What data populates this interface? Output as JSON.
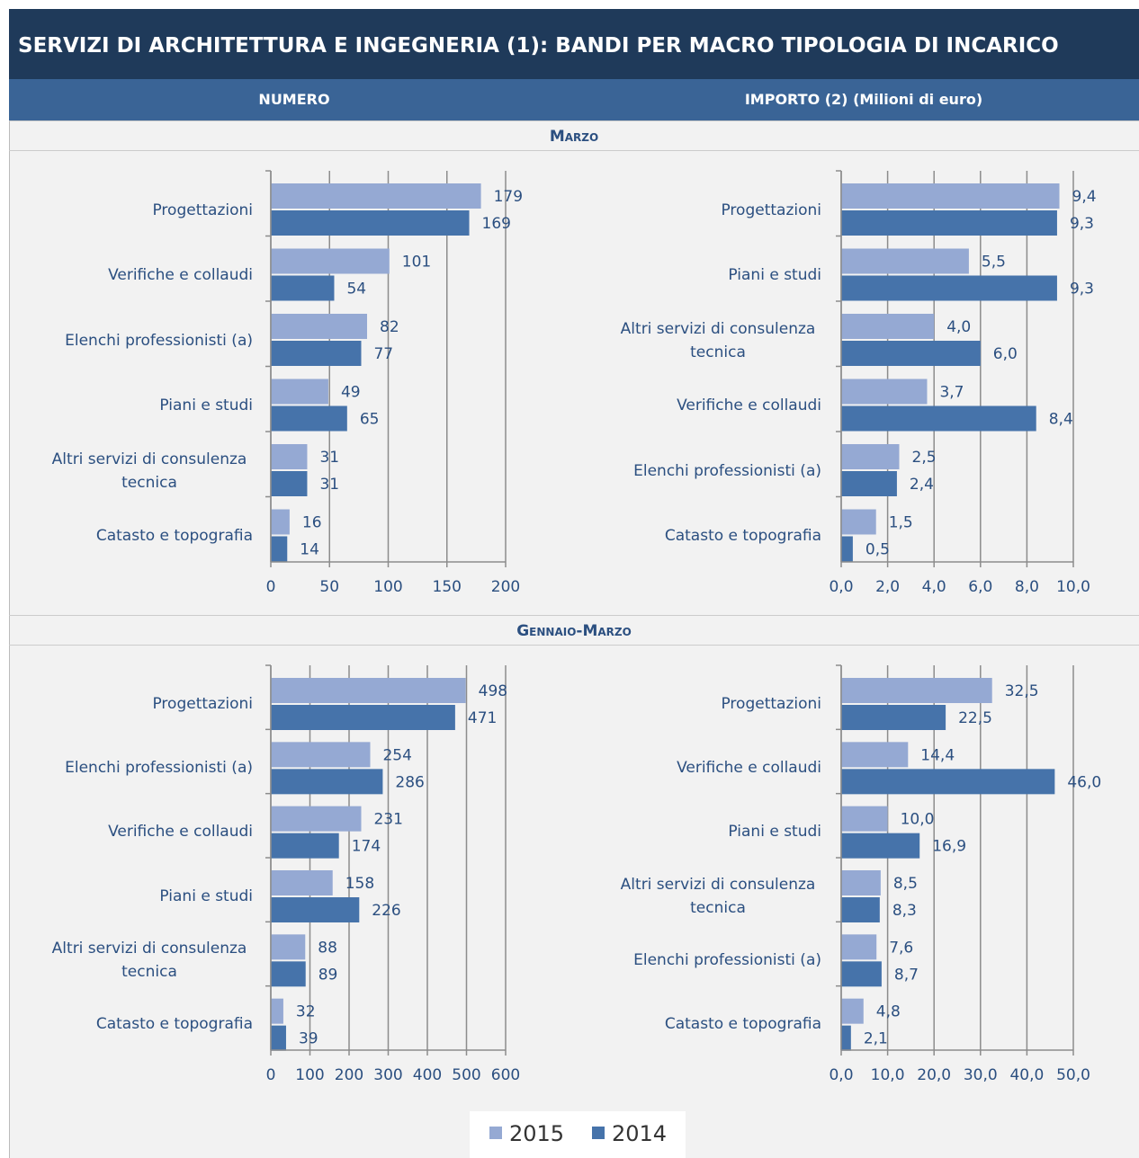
{
  "title": "SERVIZI DI ARCHITETTURA E INGEGNERIA (1): BANDI PER MACRO TIPOLOGIA DI INCARICO",
  "columns": [
    "NUMERO",
    "IMPORTO (2) (Milioni di euro)"
  ],
  "sections": [
    "Marzo",
    "Gennaio-Marzo"
  ],
  "chart_data": [
    {
      "type": "bar",
      "orientation": "horizontal",
      "categories": [
        "Progettazioni",
        "Verifiche e collaudi",
        "Elenchi professionisti (a)",
        "Piani e studi",
        "Altri servizi di consulenza tecnica",
        "Catasto e topografia"
      ],
      "series": [
        {
          "name": "2015",
          "color": "#95a9d3",
          "values": [
            179,
            101,
            82,
            49,
            31,
            16
          ]
        },
        {
          "name": "2014",
          "color": "#4673aa",
          "values": [
            169,
            54,
            77,
            65,
            31,
            14
          ]
        }
      ],
      "xlim": [
        0,
        200
      ],
      "xticks": [
        0,
        50,
        100,
        150,
        200
      ],
      "grid": true
    },
    {
      "type": "bar",
      "orientation": "horizontal",
      "categories": [
        "Progettazioni",
        "Piani e studi",
        "Altri servizi di consulenza tecnica",
        "Verifiche e collaudi",
        "Elenchi professionisti (a)",
        "Catasto e topografia"
      ],
      "series": [
        {
          "name": "2015",
          "color": "#95a9d3",
          "values": [
            9.4,
            5.5,
            4.0,
            3.7,
            2.5,
            1.5
          ],
          "value_labels": [
            "9,4",
            "5,5",
            "4,0",
            "3,7",
            "2,5",
            "1,5"
          ]
        },
        {
          "name": "2014",
          "color": "#4673aa",
          "values": [
            9.3,
            9.3,
            6.0,
            8.4,
            2.4,
            0.5
          ],
          "value_labels": [
            "9,3",
            "9,3",
            "6,0",
            "8,4",
            "2,4",
            "0,5"
          ]
        }
      ],
      "xlim": [
        0,
        10
      ],
      "xticks": [
        {
          "value": 0,
          "label": "0,0"
        },
        {
          "value": 2,
          "label": "2,0"
        },
        {
          "value": 4,
          "label": "4,0"
        },
        {
          "value": 6,
          "label": "6,0"
        },
        {
          "value": 8,
          "label": "8,0"
        },
        {
          "value": 10,
          "label": "10,0"
        }
      ],
      "grid": true
    },
    {
      "type": "bar",
      "orientation": "horizontal",
      "categories": [
        "Progettazioni",
        "Elenchi professionisti (a)",
        "Verifiche e collaudi",
        "Piani e studi",
        "Altri servizi di consulenza tecnica",
        "Catasto e topografia"
      ],
      "series": [
        {
          "name": "2015",
          "color": "#95a9d3",
          "values": [
            498,
            254,
            231,
            158,
            88,
            32
          ]
        },
        {
          "name": "2014",
          "color": "#4673aa",
          "values": [
            471,
            286,
            174,
            226,
            89,
            39
          ]
        }
      ],
      "xlim": [
        0,
        600
      ],
      "xticks": [
        0,
        100,
        200,
        300,
        400,
        500,
        600
      ],
      "grid": true
    },
    {
      "type": "bar",
      "orientation": "horizontal",
      "categories": [
        "Progettazioni",
        "Verifiche e collaudi",
        "Piani e studi",
        "Altri servizi di consulenza tecnica",
        "Elenchi professionisti (a)",
        "Catasto e topografia"
      ],
      "series": [
        {
          "name": "2015",
          "color": "#95a9d3",
          "values": [
            32.5,
            14.4,
            10.0,
            8.5,
            7.6,
            4.8
          ],
          "value_labels": [
            "32,5",
            "14,4",
            "10,0",
            "8,5",
            "7,6",
            "4,8"
          ]
        },
        {
          "name": "2014",
          "color": "#4673aa",
          "values": [
            22.5,
            46.0,
            16.9,
            8.3,
            8.7,
            2.1
          ],
          "value_labels": [
            "22,5",
            "46,0",
            "16,9",
            "8,3",
            "8,7",
            "2,1"
          ]
        }
      ],
      "xlim": [
        0,
        50
      ],
      "xticks": [
        {
          "value": 0,
          "label": "0,0"
        },
        {
          "value": 10,
          "label": "10,0"
        },
        {
          "value": 20,
          "label": "20,0"
        },
        {
          "value": 30,
          "label": "30,0"
        },
        {
          "value": 40,
          "label": "40,0"
        },
        {
          "value": 50,
          "label": "50,0"
        }
      ],
      "grid": true
    }
  ]
}
